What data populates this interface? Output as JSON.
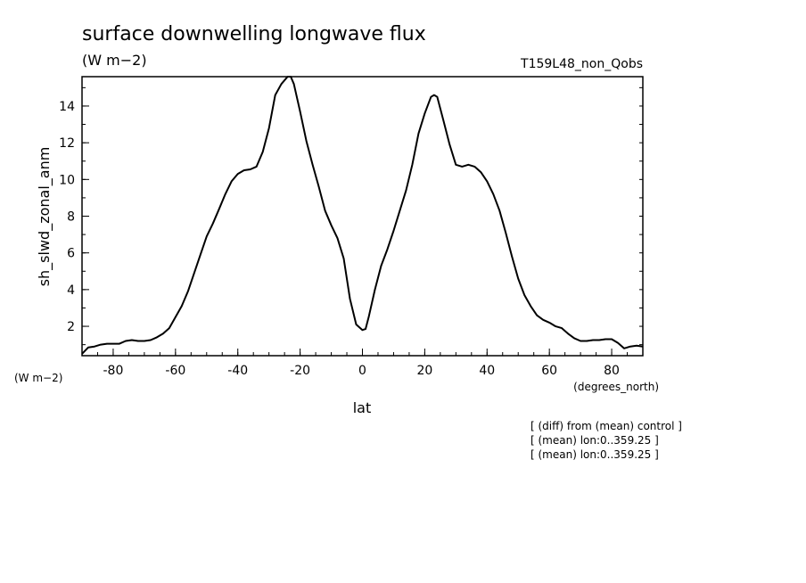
{
  "chart_data": {
    "type": "line",
    "title": "surface downwelling longwave flux",
    "units_top": "(W m−2)",
    "run_label": "T159L48_non_Qobs",
    "ylabel": "sh_slwd_zonal_anm",
    "y_units": "(W m−2)",
    "xlabel": "lat",
    "x_units": "(degrees_north)",
    "xlim": [
      -90,
      90
    ],
    "ylim": [
      0.4,
      15.6
    ],
    "x_ticks": [
      "-80",
      "-60",
      "-40",
      "-20",
      "0",
      "20",
      "40",
      "60",
      "80"
    ],
    "y_ticks": [
      "2",
      "4",
      "6",
      "8",
      "10",
      "12",
      "14"
    ],
    "notes": [
      "[ (diff) from (mean) control ]",
      "[ (mean) lon:0..359.25 ]",
      "[ (mean) lon:0..359.25 ]"
    ],
    "series": [
      {
        "color": "#000000",
        "x": [
          -90,
          -88,
          -86,
          -84,
          -82,
          -80,
          -78,
          -76,
          -74,
          -72,
          -70,
          -68,
          -66,
          -64,
          -62,
          -60,
          -58,
          -56,
          -54,
          -52,
          -50,
          -48,
          -46,
          -44,
          -42,
          -40,
          -38,
          -36,
          -34,
          -32,
          -30,
          -28,
          -26,
          -24,
          -23,
          -22,
          -20,
          -18,
          -16,
          -14,
          -12,
          -10,
          -8,
          -6,
          -4,
          -2,
          0,
          1,
          2,
          4,
          6,
          8,
          10,
          12,
          14,
          16,
          18,
          20,
          22,
          23,
          24,
          26,
          28,
          30,
          32,
          34,
          36,
          38,
          40,
          42,
          44,
          46,
          48,
          50,
          52,
          54,
          56,
          58,
          60,
          62,
          64,
          66,
          68,
          70,
          72,
          74,
          76,
          78,
          80,
          82,
          84,
          86,
          88,
          90
        ],
        "y": [
          0.5,
          0.85,
          0.9,
          1.0,
          1.05,
          1.05,
          1.05,
          1.2,
          1.25,
          1.2,
          1.2,
          1.25,
          1.4,
          1.6,
          1.9,
          2.5,
          3.1,
          3.9,
          4.9,
          5.9,
          6.9,
          7.6,
          8.4,
          9.2,
          9.9,
          10.3,
          10.5,
          10.55,
          10.7,
          11.5,
          12.8,
          14.6,
          15.2,
          15.6,
          15.6,
          15.2,
          13.7,
          12.1,
          10.8,
          9.6,
          8.3,
          7.5,
          6.8,
          5.7,
          3.5,
          2.1,
          1.8,
          1.85,
          2.5,
          4.0,
          5.3,
          6.2,
          7.2,
          8.3,
          9.4,
          10.8,
          12.5,
          13.6,
          14.5,
          14.6,
          14.5,
          13.2,
          11.9,
          10.8,
          10.7,
          10.8,
          10.7,
          10.4,
          9.9,
          9.2,
          8.3,
          7.1,
          5.8,
          4.6,
          3.7,
          3.1,
          2.6,
          2.35,
          2.2,
          2.0,
          1.9,
          1.6,
          1.35,
          1.2,
          1.2,
          1.25,
          1.25,
          1.3,
          1.3,
          1.1,
          0.8,
          0.9,
          0.95,
          0.9
        ]
      }
    ]
  }
}
